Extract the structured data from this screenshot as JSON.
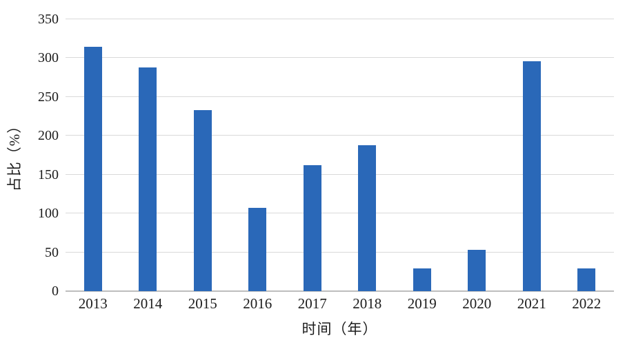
{
  "chart_data": {
    "type": "bar",
    "title": "",
    "xlabel": "时间（年）",
    "ylabel": "占比（%）",
    "categories": [
      "2013",
      "2014",
      "2015",
      "2016",
      "2017",
      "2018",
      "2019",
      "2020",
      "2021",
      "2022"
    ],
    "values": [
      315,
      288,
      233,
      107,
      162,
      188,
      29,
      53,
      296,
      29
    ],
    "ylim": [
      0,
      350
    ],
    "ytick_step": 50,
    "grid": true,
    "legend": "none",
    "colors": {
      "bar": "#2A68B8",
      "gridline": "#D9D9D9",
      "baseline": "#BDBDBD",
      "text": "#1C1C1C"
    }
  }
}
